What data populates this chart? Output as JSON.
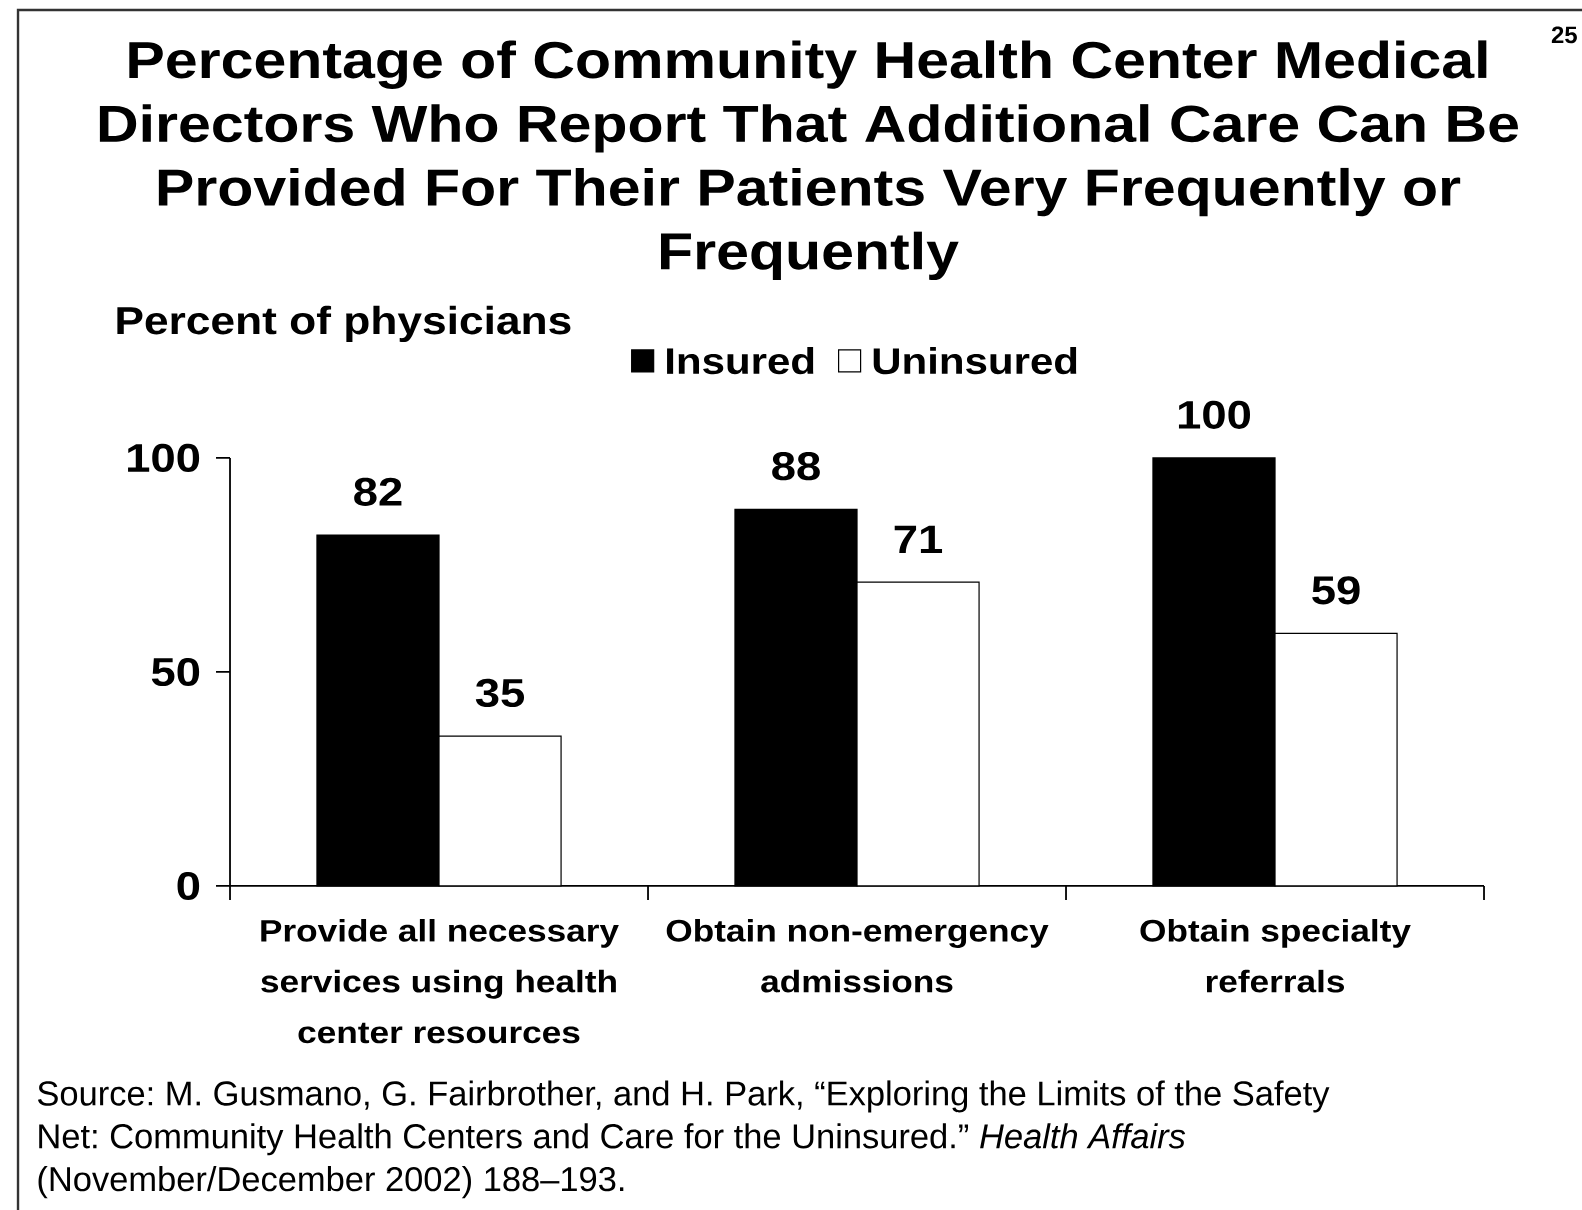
{
  "chart_data": {
    "type": "bar",
    "title": "Percentage of Community Health Center Medical Directors Who Report That Additional Care Can Be Provided For Their Patients Very Frequently or Frequently",
    "ylabel": "Percent of physicians",
    "categories": [
      "Provide all necessary services using health center resources",
      "Obtain non-emergency admissions",
      "Obtain specialty referrals"
    ],
    "series": [
      {
        "name": "Insured",
        "color": "#000000",
        "values": [
          82,
          88,
          100
        ]
      },
      {
        "name": "Uninsured",
        "color": "#ffffff",
        "values": [
          35,
          71,
          59
        ]
      }
    ],
    "ylim": [
      0,
      100
    ],
    "yticks": [
      0,
      50,
      100
    ],
    "data_labels": true,
    "legend": "top",
    "annotations": [
      "Source: M. Gusmano, G. Fairbrother, and H. Park, “Exploring the Limits of the Safety Net: Community Health Centers and Care for the Uninsured.” *Health Affairs* (November/December 2002) 188–193.",
      "25"
    ]
  }
}
